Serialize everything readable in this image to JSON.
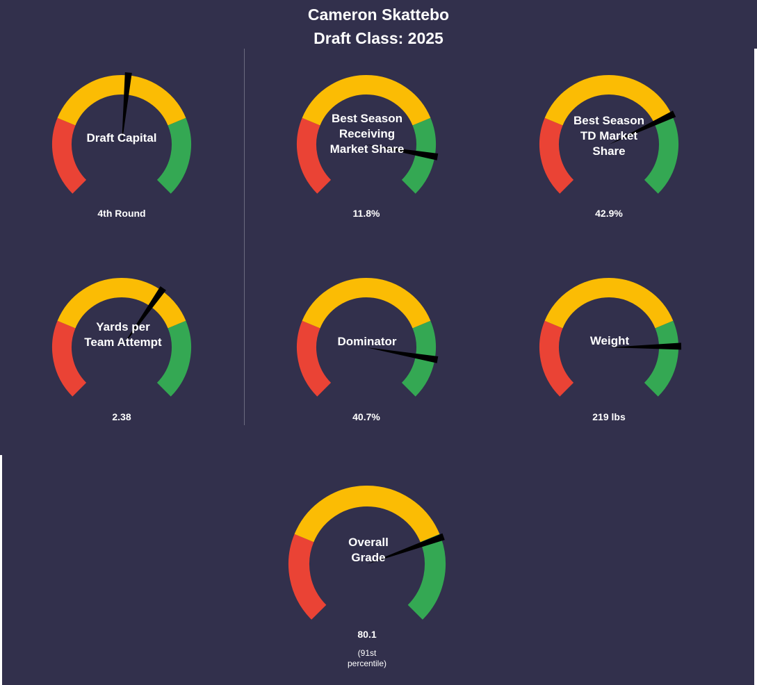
{
  "title": {
    "line1": "Cameron Skattebo",
    "line2": "Draft Class: 2025"
  },
  "colors": {
    "background": "#32304c",
    "red": "#ea4335",
    "yellow": "#fbbc04",
    "green": "#34a853",
    "needle": "#000000",
    "text": "#ffffff"
  },
  "chart_data": [
    {
      "type": "gauge",
      "label": "Draft Capital",
      "display_value": "4th Round",
      "needle_fraction": 0.52
    },
    {
      "type": "gauge",
      "label": "Best Season\nReceiving\nMarket Share",
      "display_value": "11.8%",
      "needle_fraction": 0.87
    },
    {
      "type": "gauge",
      "label": "Best Season\nTD Market\nShare",
      "display_value": "42.9%",
      "needle_fraction": 0.74
    },
    {
      "type": "gauge",
      "label": "Yards per\nTeam Attempt",
      "display_value": "2.38",
      "needle_fraction": 0.63
    },
    {
      "type": "gauge",
      "label": "Dominator",
      "display_value": "40.7%",
      "needle_fraction": 0.87
    },
    {
      "type": "gauge",
      "label": "Weight",
      "display_value": "219 lbs",
      "needle_fraction": 0.83
    },
    {
      "type": "gauge",
      "label": "Overall\nGrade",
      "display_value": "80.1",
      "note": "(91st\npercentile)",
      "needle_fraction": 0.76
    }
  ]
}
